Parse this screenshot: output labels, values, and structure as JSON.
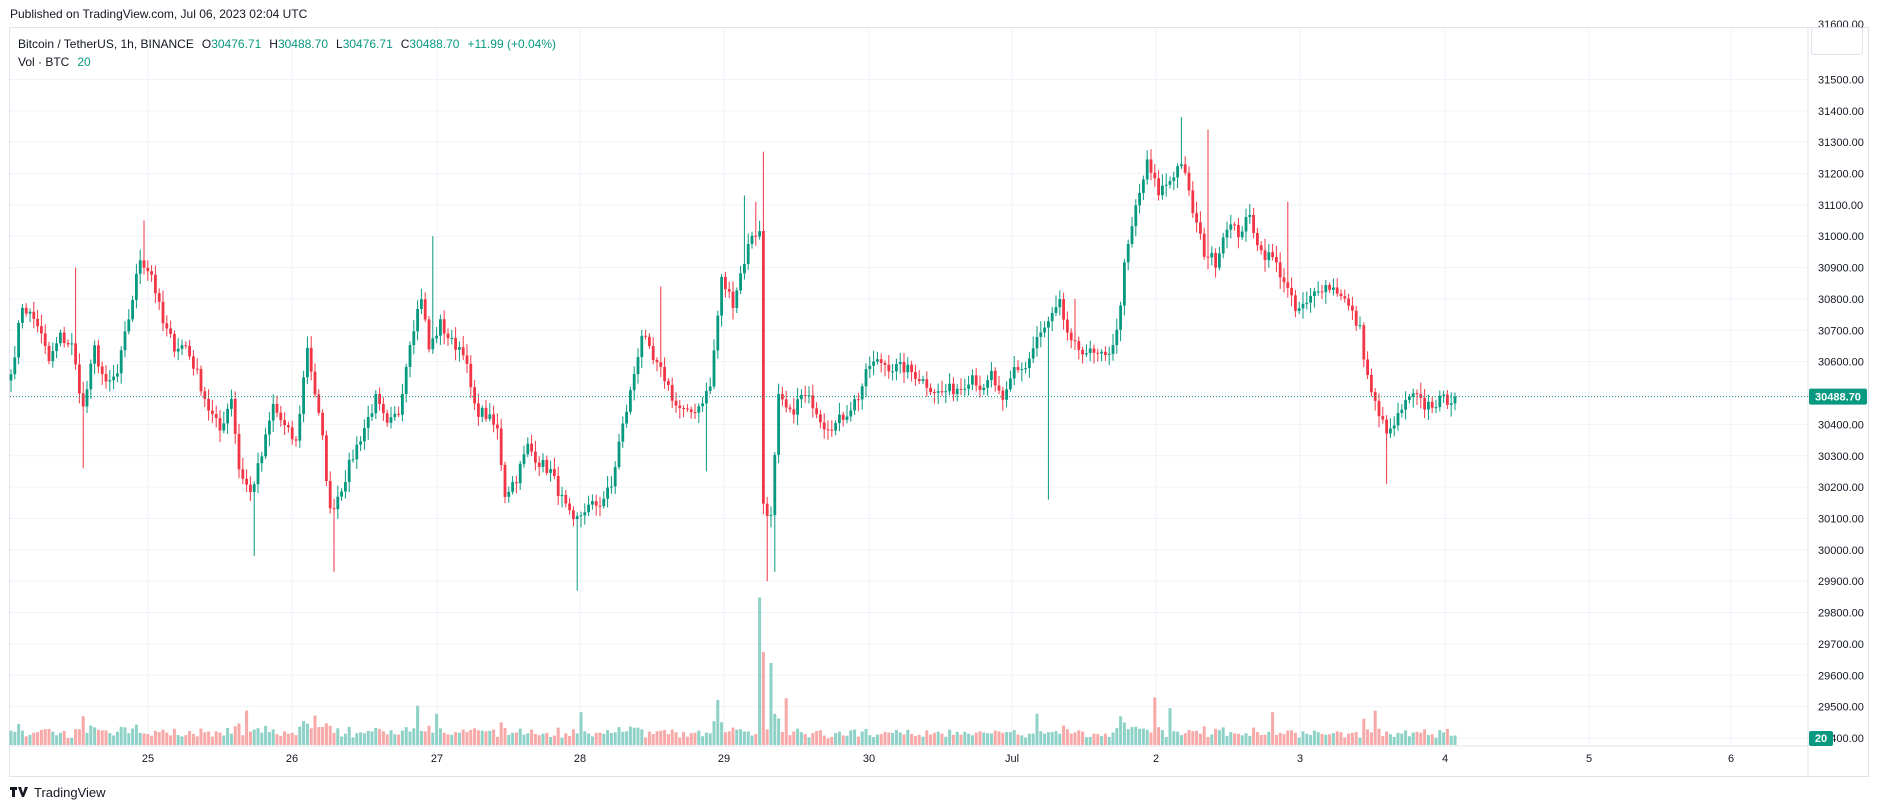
{
  "header": {
    "published": "Published on TradingView.com, Jul 06, 2023 02:04 UTC"
  },
  "legend": {
    "symbol": "Bitcoin / TetherUS, 1h, BINANCE",
    "o_label": "O",
    "o_value": "30476.71",
    "h_label": "H",
    "h_value": "30488.70",
    "l_label": "L",
    "l_value": "30476.71",
    "c_label": "C",
    "c_value": "30488.70",
    "change": "+11.99 (+0.04%)",
    "vol_label": "Vol · BTC",
    "vol_value": "20"
  },
  "footer": {
    "brand": "TradingView"
  },
  "colors": {
    "up": "#089981",
    "down": "#f23645",
    "up_vol": "#8ed1c6",
    "down_vol": "#f7a9a7",
    "grid": "#f0f3fa",
    "text": "#131722"
  },
  "chart_data": {
    "type": "candlestick",
    "interval": "1h",
    "y_axis": {
      "range": [
        29330,
        31600
      ],
      "ticks": [
        "29400.00",
        "29500.00",
        "29600.00",
        "29700.00",
        "29800.00",
        "29900.00",
        "30000.00",
        "30100.00",
        "30200.00",
        "30300.00",
        "30400.00",
        "30500.00",
        "30600.00",
        "30700.00",
        "30800.00",
        "30900.00",
        "31000.00",
        "31100.00",
        "31200.00",
        "31300.00",
        "31400.00",
        "31500.00"
      ],
      "top_partial_tick": "31600.00"
    },
    "x_axis": {
      "labels": [
        "25",
        "26",
        "27",
        "28",
        "29",
        "30",
        "Jul",
        "2",
        "3",
        "4",
        "5",
        "6"
      ]
    },
    "last_price": {
      "value": 30488.7,
      "label": "30488.70"
    },
    "last_volume": {
      "value": 20,
      "label": "20"
    },
    "anchors": [
      [
        0,
        30560
      ],
      [
        3,
        30780
      ],
      [
        7,
        30720
      ],
      [
        10,
        30600
      ],
      [
        13,
        30680
      ],
      [
        16,
        30650
      ],
      [
        19,
        30450
      ],
      [
        22,
        30640
      ],
      [
        25,
        30520
      ],
      [
        28,
        30560
      ],
      [
        31,
        30740
      ],
      [
        34,
        30930
      ],
      [
        37,
        30880
      ],
      [
        40,
        30720
      ],
      [
        43,
        30650
      ],
      [
        46,
        30650
      ],
      [
        49,
        30560
      ],
      [
        52,
        30450
      ],
      [
        55,
        30380
      ],
      [
        58,
        30490
      ],
      [
        60,
        30260
      ],
      [
        63,
        30180
      ],
      [
        66,
        30300
      ],
      [
        69,
        30460
      ],
      [
        72,
        30390
      ],
      [
        75,
        30340
      ],
      [
        78,
        30650
      ],
      [
        82,
        30350
      ],
      [
        84,
        30120
      ],
      [
        87,
        30200
      ],
      [
        90,
        30300
      ],
      [
        93,
        30390
      ],
      [
        96,
        30480
      ],
      [
        99,
        30390
      ],
      [
        102,
        30440
      ],
      [
        105,
        30670
      ],
      [
        108,
        30810
      ],
      [
        110,
        30640
      ],
      [
        113,
        30720
      ],
      [
        116,
        30660
      ],
      [
        119,
        30640
      ],
      [
        122,
        30450
      ],
      [
        125,
        30430
      ],
      [
        128,
        30380
      ],
      [
        130,
        30180
      ],
      [
        133,
        30230
      ],
      [
        136,
        30330
      ],
      [
        139,
        30280
      ],
      [
        142,
        30250
      ],
      [
        145,
        30160
      ],
      [
        148,
        30080
      ],
      [
        151,
        30130
      ],
      [
        155,
        30150
      ],
      [
        158,
        30200
      ],
      [
        160,
        30340
      ],
      [
        163,
        30500
      ],
      [
        166,
        30690
      ],
      [
        169,
        30600
      ],
      [
        172,
        30550
      ],
      [
        175,
        30460
      ],
      [
        178,
        30430
      ],
      [
        181,
        30460
      ],
      [
        184,
        30520
      ],
      [
        187,
        30860
      ],
      [
        190,
        30790
      ],
      [
        192,
        30880
      ],
      [
        195,
        31010
      ],
      [
        197,
        31010
      ],
      [
        198,
        30150
      ],
      [
        200,
        30100
      ],
      [
        202,
        30480
      ],
      [
        205,
        30430
      ],
      [
        208,
        30490
      ],
      [
        211,
        30470
      ],
      [
        214,
        30400
      ],
      [
        217,
        30400
      ],
      [
        220,
        30440
      ],
      [
        223,
        30490
      ],
      [
        226,
        30590
      ],
      [
        229,
        30600
      ],
      [
        232,
        30580
      ],
      [
        235,
        30580
      ],
      [
        238,
        30560
      ],
      [
        241,
        30530
      ],
      [
        244,
        30500
      ],
      [
        247,
        30510
      ],
      [
        250,
        30520
      ],
      [
        253,
        30560
      ],
      [
        256,
        30500
      ],
      [
        258,
        30560
      ],
      [
        261,
        30460
      ],
      [
        264,
        30580
      ],
      [
        267,
        30580
      ],
      [
        270,
        30670
      ],
      [
        273,
        30720
      ],
      [
        276,
        30780
      ],
      [
        279,
        30650
      ],
      [
        282,
        30640
      ],
      [
        285,
        30620
      ],
      [
        288,
        30610
      ],
      [
        291,
        30690
      ],
      [
        293,
        30900
      ],
      [
        296,
        31090
      ],
      [
        299,
        31230
      ],
      [
        302,
        31140
      ],
      [
        305,
        31180
      ],
      [
        308,
        31240
      ],
      [
        311,
        31080
      ],
      [
        314,
        30950
      ],
      [
        317,
        30920
      ],
      [
        320,
        31040
      ],
      [
        323,
        31010
      ],
      [
        326,
        31060
      ],
      [
        329,
        30950
      ],
      [
        332,
        30930
      ],
      [
        335,
        30860
      ],
      [
        338,
        30760
      ],
      [
        341,
        30780
      ],
      [
        344,
        30840
      ],
      [
        347,
        30840
      ],
      [
        350,
        30820
      ],
      [
        353,
        30750
      ],
      [
        355,
        30700
      ],
      [
        357,
        30550
      ],
      [
        360,
        30420
      ],
      [
        363,
        30370
      ],
      [
        366,
        30450
      ],
      [
        369,
        30490
      ],
      [
        372,
        30460
      ],
      [
        375,
        30470
      ],
      [
        378,
        30480
      ],
      [
        380,
        30488
      ]
    ],
    "spikes": {
      "highs": [
        [
          17,
          30900
        ],
        [
          35,
          31050
        ],
        [
          111,
          31000
        ],
        [
          171,
          30840
        ],
        [
          193,
          31130
        ],
        [
          196,
          31110
        ],
        [
          198,
          31270
        ],
        [
          280,
          30800
        ],
        [
          308,
          31380
        ],
        [
          315,
          31340
        ],
        [
          336,
          31110
        ]
      ],
      "lows": [
        [
          19,
          30260
        ],
        [
          64,
          29980
        ],
        [
          85,
          29930
        ],
        [
          149,
          29870
        ],
        [
          183,
          30250
        ],
        [
          199,
          29900
        ],
        [
          201,
          29930
        ],
        [
          273,
          30160
        ],
        [
          362,
          30210
        ]
      ]
    },
    "volume_spikes": [
      [
        19,
        35
      ],
      [
        62,
        42
      ],
      [
        80,
        36
      ],
      [
        107,
        48
      ],
      [
        112,
        38
      ],
      [
        150,
        40
      ],
      [
        186,
        55
      ],
      [
        197,
        180
      ],
      [
        200,
        100
      ],
      [
        204,
        57
      ],
      [
        270,
        38
      ],
      [
        292,
        35
      ],
      [
        301,
        58
      ],
      [
        305,
        45
      ],
      [
        332,
        40
      ],
      [
        356,
        32
      ],
      [
        359,
        42
      ]
    ]
  }
}
